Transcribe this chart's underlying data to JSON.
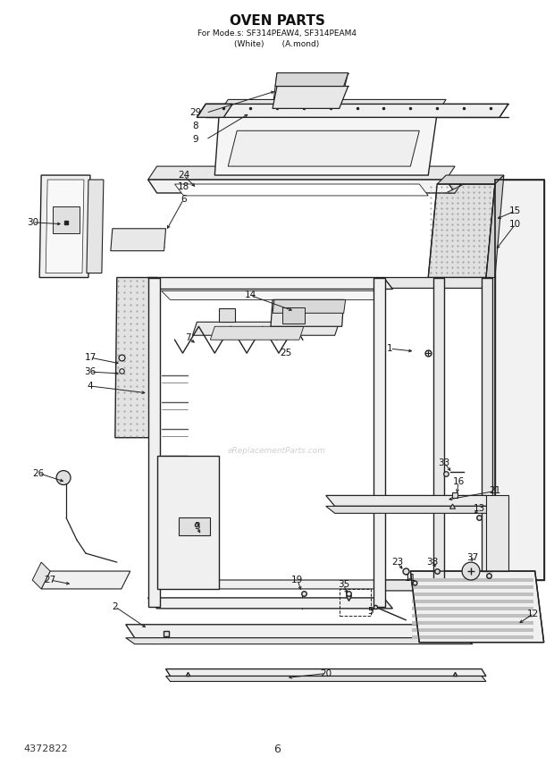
{
  "title_line1": "OVEN PARTS",
  "title_line2": "For Mode.s: SF314PEAW4, SF314PEAM4",
  "title_line3": "(White)       (A.mond)",
  "bottom_left_text": "4372822",
  "bottom_center_text": "6",
  "bg_color": "#ffffff",
  "line_color": "#222222",
  "text_color": "#111111",
  "watermark_text": "eReplacementParts.com",
  "title_font": 11,
  "subtitle_font": 6.5,
  "label_font": 7.5
}
